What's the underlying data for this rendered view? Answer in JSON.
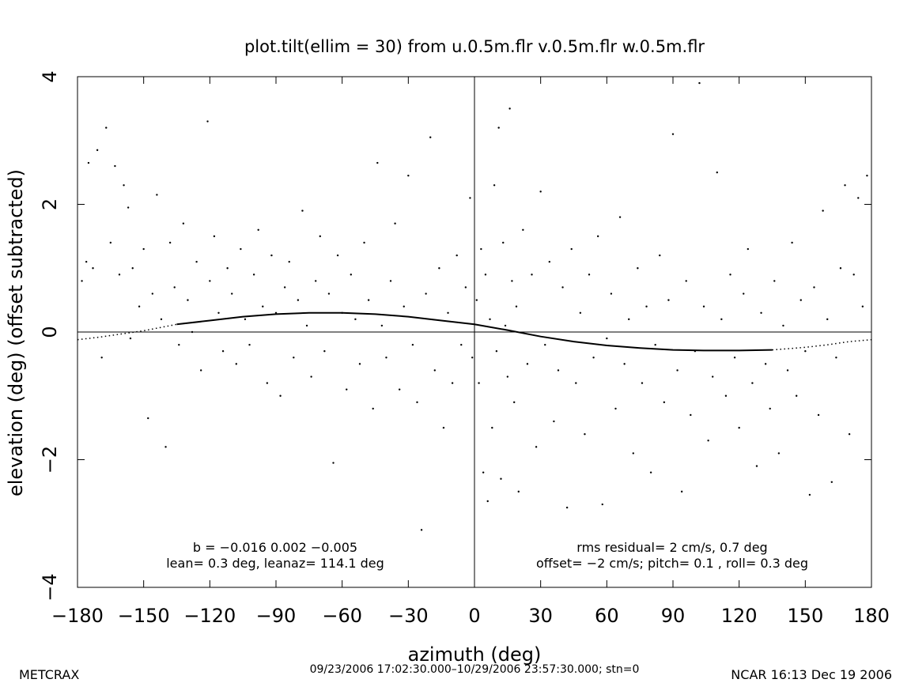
{
  "chart_data": {
    "type": "scatter",
    "title": "plot.tilt(ellim = 30) from u.0.5m.flr v.0.5m.flr w.0.5m.flr",
    "xlabel": "azimuth (deg)",
    "ylabel": "elevation (deg)  (offset subtracted)",
    "xlim": [
      -180,
      180
    ],
    "ylim": [
      -4,
      4
    ],
    "x_ticks": [
      "−180",
      "−150",
      "−120",
      "−90",
      "−60",
      "−30",
      "0",
      "30",
      "60",
      "90",
      "120",
      "150",
      "180"
    ],
    "y_ticks": [
      "−4",
      "−2",
      "0",
      "2",
      "4"
    ],
    "grid": false,
    "reference_lines": {
      "x": 0,
      "y": 0
    },
    "series": [
      {
        "points": [
          [
            -178,
            0.8
          ],
          [
            -176,
            1.1
          ],
          [
            -175,
            2.65
          ],
          [
            -173,
            1.0
          ],
          [
            -171,
            2.85
          ],
          [
            -169,
            -0.4
          ],
          [
            -167,
            3.2
          ],
          [
            -165,
            1.4
          ],
          [
            -163,
            2.6
          ],
          [
            -161,
            0.9
          ],
          [
            -159,
            2.3
          ],
          [
            -157,
            1.95
          ],
          [
            -156,
            -0.1
          ],
          [
            -155,
            1.0
          ],
          [
            -152,
            0.4
          ],
          [
            -150,
            1.3
          ],
          [
            -148,
            -1.35
          ],
          [
            -146,
            0.6
          ],
          [
            -144,
            2.15
          ],
          [
            -142,
            0.2
          ],
          [
            -140,
            -1.8
          ],
          [
            -138,
            1.4
          ],
          [
            -136,
            0.7
          ],
          [
            -134,
            -0.2
          ],
          [
            -132,
            1.7
          ],
          [
            -130,
            0.5
          ],
          [
            -128,
            0.0
          ],
          [
            -126,
            1.1
          ],
          [
            -124,
            -0.6
          ],
          [
            -121,
            3.3
          ],
          [
            -120,
            0.8
          ],
          [
            -118,
            1.5
          ],
          [
            -116,
            0.3
          ],
          [
            -114,
            -0.3
          ],
          [
            -112,
            1.0
          ],
          [
            -110,
            0.6
          ],
          [
            -108,
            -0.5
          ],
          [
            -106,
            1.3
          ],
          [
            -104,
            0.2
          ],
          [
            -102,
            -0.2
          ],
          [
            -100,
            0.9
          ],
          [
            -98,
            1.6
          ],
          [
            -96,
            0.4
          ],
          [
            -94,
            -0.8
          ],
          [
            -92,
            1.2
          ],
          [
            -90,
            0.3
          ],
          [
            -88,
            -1.0
          ],
          [
            -86,
            0.7
          ],
          [
            -84,
            1.1
          ],
          [
            -82,
            -0.4
          ],
          [
            -80,
            0.5
          ],
          [
            -78,
            1.9
          ],
          [
            -76,
            0.1
          ],
          [
            -74,
            -0.7
          ],
          [
            -72,
            0.8
          ],
          [
            -70,
            1.5
          ],
          [
            -68,
            -0.3
          ],
          [
            -66,
            0.6
          ],
          [
            -64,
            -2.05
          ],
          [
            -62,
            1.2
          ],
          [
            -60,
            0.3
          ],
          [
            -58,
            -0.9
          ],
          [
            -56,
            0.9
          ],
          [
            -54,
            0.2
          ],
          [
            -52,
            -0.5
          ],
          [
            -50,
            1.4
          ],
          [
            -48,
            0.5
          ],
          [
            -46,
            -1.2
          ],
          [
            -44,
            2.65
          ],
          [
            -42,
            0.1
          ],
          [
            -40,
            -0.4
          ],
          [
            -38,
            0.8
          ],
          [
            -36,
            1.7
          ],
          [
            -34,
            -0.9
          ],
          [
            -32,
            0.4
          ],
          [
            -30,
            2.45
          ],
          [
            -28,
            -0.2
          ],
          [
            -26,
            -1.1
          ],
          [
            -24,
            -3.1
          ],
          [
            -22,
            0.6
          ],
          [
            -20,
            3.05
          ],
          [
            -18,
            -0.6
          ],
          [
            -16,
            1.0
          ],
          [
            -14,
            -1.5
          ],
          [
            -12,
            0.3
          ],
          [
            -10,
            -0.8
          ],
          [
            -8,
            1.2
          ],
          [
            -6,
            -0.2
          ],
          [
            -4,
            0.7
          ],
          [
            -2,
            2.1
          ],
          [
            -1,
            -0.4
          ],
          [
            1,
            0.5
          ],
          [
            2,
            -0.8
          ],
          [
            3,
            1.3
          ],
          [
            4,
            -2.2
          ],
          [
            5,
            0.9
          ],
          [
            6,
            -2.65
          ],
          [
            7,
            0.2
          ],
          [
            8,
            -1.5
          ],
          [
            9,
            2.3
          ],
          [
            10,
            -0.3
          ],
          [
            11,
            3.2
          ],
          [
            12,
            -2.3
          ],
          [
            13,
            1.4
          ],
          [
            14,
            0.1
          ],
          [
            15,
            -0.7
          ],
          [
            16,
            3.5
          ],
          [
            17,
            0.8
          ],
          [
            18,
            -1.1
          ],
          [
            19,
            0.4
          ],
          [
            20,
            -2.5
          ],
          [
            22,
            1.6
          ],
          [
            24,
            -0.5
          ],
          [
            26,
            0.9
          ],
          [
            28,
            -1.8
          ],
          [
            30,
            2.2
          ],
          [
            32,
            -0.2
          ],
          [
            34,
            1.1
          ],
          [
            36,
            -1.4
          ],
          [
            38,
            -0.6
          ],
          [
            40,
            0.7
          ],
          [
            42,
            -2.75
          ],
          [
            44,
            1.3
          ],
          [
            46,
            -0.8
          ],
          [
            48,
            0.3
          ],
          [
            50,
            -1.6
          ],
          [
            52,
            0.9
          ],
          [
            54,
            -0.4
          ],
          [
            56,
            1.5
          ],
          [
            58,
            -2.7
          ],
          [
            60,
            -0.1
          ],
          [
            62,
            0.6
          ],
          [
            64,
            -1.2
          ],
          [
            66,
            1.8
          ],
          [
            68,
            -0.5
          ],
          [
            70,
            0.2
          ],
          [
            72,
            -1.9
          ],
          [
            74,
            1.0
          ],
          [
            76,
            -0.8
          ],
          [
            78,
            0.4
          ],
          [
            80,
            -2.2
          ],
          [
            82,
            -0.2
          ],
          [
            84,
            1.2
          ],
          [
            86,
            -1.1
          ],
          [
            88,
            0.5
          ],
          [
            90,
            3.1
          ],
          [
            92,
            -0.6
          ],
          [
            94,
            -2.5
          ],
          [
            96,
            0.8
          ],
          [
            98,
            -1.3
          ],
          [
            100,
            -0.3
          ],
          [
            102,
            3.9
          ],
          [
            104,
            0.4
          ],
          [
            106,
            -1.7
          ],
          [
            108,
            -0.7
          ],
          [
            110,
            2.5
          ],
          [
            112,
            0.2
          ],
          [
            114,
            -1.0
          ],
          [
            116,
            0.9
          ],
          [
            118,
            -0.4
          ],
          [
            120,
            -1.5
          ],
          [
            122,
            0.6
          ],
          [
            124,
            1.3
          ],
          [
            126,
            -0.8
          ],
          [
            128,
            -2.1
          ],
          [
            130,
            0.3
          ],
          [
            132,
            -0.5
          ],
          [
            134,
            -1.2
          ],
          [
            136,
            0.8
          ],
          [
            138,
            -1.9
          ],
          [
            140,
            0.1
          ],
          [
            142,
            -0.6
          ],
          [
            144,
            1.4
          ],
          [
            146,
            -1.0
          ],
          [
            148,
            0.5
          ],
          [
            150,
            -0.3
          ],
          [
            152,
            -2.55
          ],
          [
            154,
            0.7
          ],
          [
            156,
            -1.3
          ],
          [
            158,
            1.9
          ],
          [
            160,
            0.2
          ],
          [
            162,
            -2.35
          ],
          [
            164,
            -0.4
          ],
          [
            166,
            1.0
          ],
          [
            168,
            2.3
          ],
          [
            170,
            -1.6
          ],
          [
            172,
            0.9
          ],
          [
            174,
            2.1
          ],
          [
            176,
            0.4
          ],
          [
            178,
            2.45
          ]
        ]
      },
      {
        "style": "solid",
        "x": [
          -135,
          -120,
          -105,
          -90,
          -75,
          -60,
          -45,
          -30,
          -15,
          0,
          15,
          30,
          45,
          60,
          75,
          90,
          105,
          120,
          135
        ],
        "y": [
          0.12,
          0.18,
          0.24,
          0.28,
          0.3,
          0.3,
          0.28,
          0.24,
          0.18,
          0.12,
          0.03,
          -0.07,
          -0.15,
          -0.21,
          -0.25,
          -0.28,
          -0.29,
          -0.29,
          -0.28
        ]
      },
      {
        "style": "dotted",
        "x": [
          -180,
          -170,
          -160,
          -150,
          -135
        ],
        "y": [
          -0.12,
          -0.08,
          -0.03,
          0.02,
          0.12
        ]
      },
      {
        "style": "dotted",
        "x": [
          135,
          150,
          160,
          170,
          180
        ],
        "y": [
          -0.28,
          -0.24,
          -0.2,
          -0.15,
          -0.12
        ]
      }
    ],
    "annotations": [
      "b = −0.016  0.002 −0.005",
      "lean= 0.3 deg, leanaz= 114.1 deg",
      "rms residual= 2 cm/s, 0.7 deg",
      "offset= −2 cm/s; pitch= 0.1 , roll= 0.3 deg"
    ]
  },
  "footer": {
    "left": "METCRAX",
    "center": "09/23/2006 17:02:30.000–10/29/2006 23:57:30.000; stn=0",
    "right": "NCAR 16:13 Dec 19 2006"
  }
}
